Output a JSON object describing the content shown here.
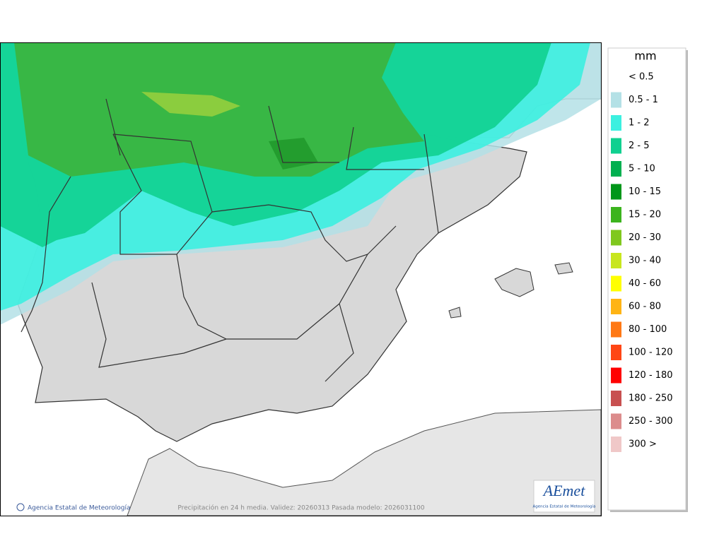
{
  "legend": {
    "title": "mm",
    "items": [
      {
        "label": "< 0.5"
      },
      {
        "label": "0.5 - 1",
        "color": "#b4e1e6"
      },
      {
        "label": "1 - 2",
        "color": "#3cf0e0"
      },
      {
        "label": "2 - 5",
        "color": "#10d090"
      },
      {
        "label": "5 - 10",
        "color": "#00b050"
      },
      {
        "label": "10 - 15",
        "color": "#009619"
      },
      {
        "label": "15 - 20",
        "color": "#3cb41e"
      },
      {
        "label": "20 - 30",
        "color": "#80c81e"
      },
      {
        "label": "30 - 40",
        "color": "#c8e61e"
      },
      {
        "label": "40 - 60",
        "color": "#ffff00"
      },
      {
        "label": "60 - 80",
        "color": "#ffb414"
      },
      {
        "label": "80 - 100",
        "color": "#ff7814"
      },
      {
        "label": "100 - 120",
        "color": "#ff4614"
      },
      {
        "label": "120 - 180",
        "color": "#ff0000"
      },
      {
        "label": "180 - 250",
        "color": "#c85050"
      },
      {
        "label": "250 - 300",
        "color": "#dc8c8c"
      },
      {
        "label": "300 >",
        "color": "#f0c8c8"
      }
    ]
  },
  "footer": {
    "credit": "Agencia Estatal de Meteorología",
    "caption": "Precipitación en 24 h media. Validez: 20260313 Pasada modelo: 2026031100"
  },
  "logo": {
    "name": "AEmet",
    "subtitle": "Agencia Estatal de Meteorología"
  }
}
